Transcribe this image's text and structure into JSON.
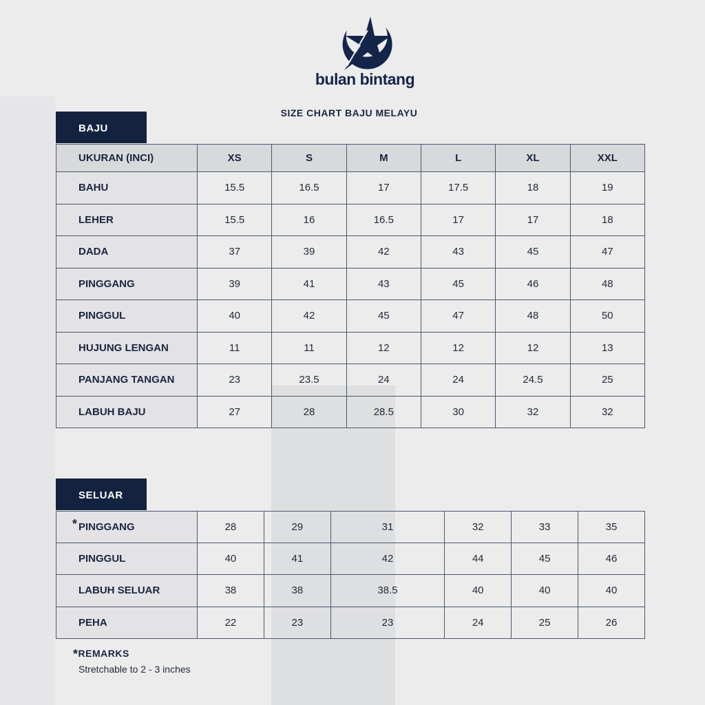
{
  "brand": {
    "name": "bulan bintang",
    "color": "#14254a"
  },
  "title": "SIZE CHART BAJU MELAYU",
  "baju": {
    "tab": "BAJU",
    "header": [
      "UKURAN (INCI)",
      "XS",
      "S",
      "M",
      "L",
      "XL",
      "XXL"
    ],
    "rows": [
      {
        "label": "BAHU",
        "values": [
          "15.5",
          "16.5",
          "17",
          "17.5",
          "18",
          "19"
        ]
      },
      {
        "label": "LEHER",
        "values": [
          "15.5",
          "16",
          "16.5",
          "17",
          "17",
          "18"
        ]
      },
      {
        "label": "DADA",
        "values": [
          "37",
          "39",
          "42",
          "43",
          "45",
          "47"
        ]
      },
      {
        "label": "PINGGANG",
        "values": [
          "39",
          "41",
          "43",
          "45",
          "46",
          "48"
        ]
      },
      {
        "label": "PINGGUL",
        "values": [
          "40",
          "42",
          "45",
          "47",
          "48",
          "50"
        ]
      },
      {
        "label": "HUJUNG LENGAN",
        "values": [
          "11",
          "11",
          "12",
          "12",
          "12",
          "13"
        ]
      },
      {
        "label": "PANJANG TANGAN",
        "values": [
          "23",
          "23.5",
          "24",
          "24",
          "24.5",
          "25"
        ]
      },
      {
        "label": "LABUH BAJU",
        "values": [
          "27",
          "28",
          "28.5",
          "30",
          "32",
          "32"
        ]
      }
    ]
  },
  "seluar": {
    "tab": "SELUAR",
    "asterisk": "*",
    "rows": [
      {
        "label": "PINGGANG",
        "values": [
          "28",
          "29",
          "31",
          "32",
          "33",
          "35"
        ]
      },
      {
        "label": "PINGGUL",
        "values": [
          "40",
          "41",
          "42",
          "44",
          "45",
          "46"
        ]
      },
      {
        "label": "LABUH SELUAR",
        "values": [
          "38",
          "38",
          "38.5",
          "40",
          "40",
          "40"
        ]
      },
      {
        "label": "PEHA",
        "values": [
          "22",
          "23",
          "23",
          "24",
          "25",
          "26"
        ]
      }
    ]
  },
  "remarks": {
    "asterisk": "*",
    "heading": "REMARKS",
    "text": "Stretchable to 2 - 3 inches"
  },
  "colors": {
    "navy": "#13223f",
    "background": "#ececed"
  }
}
